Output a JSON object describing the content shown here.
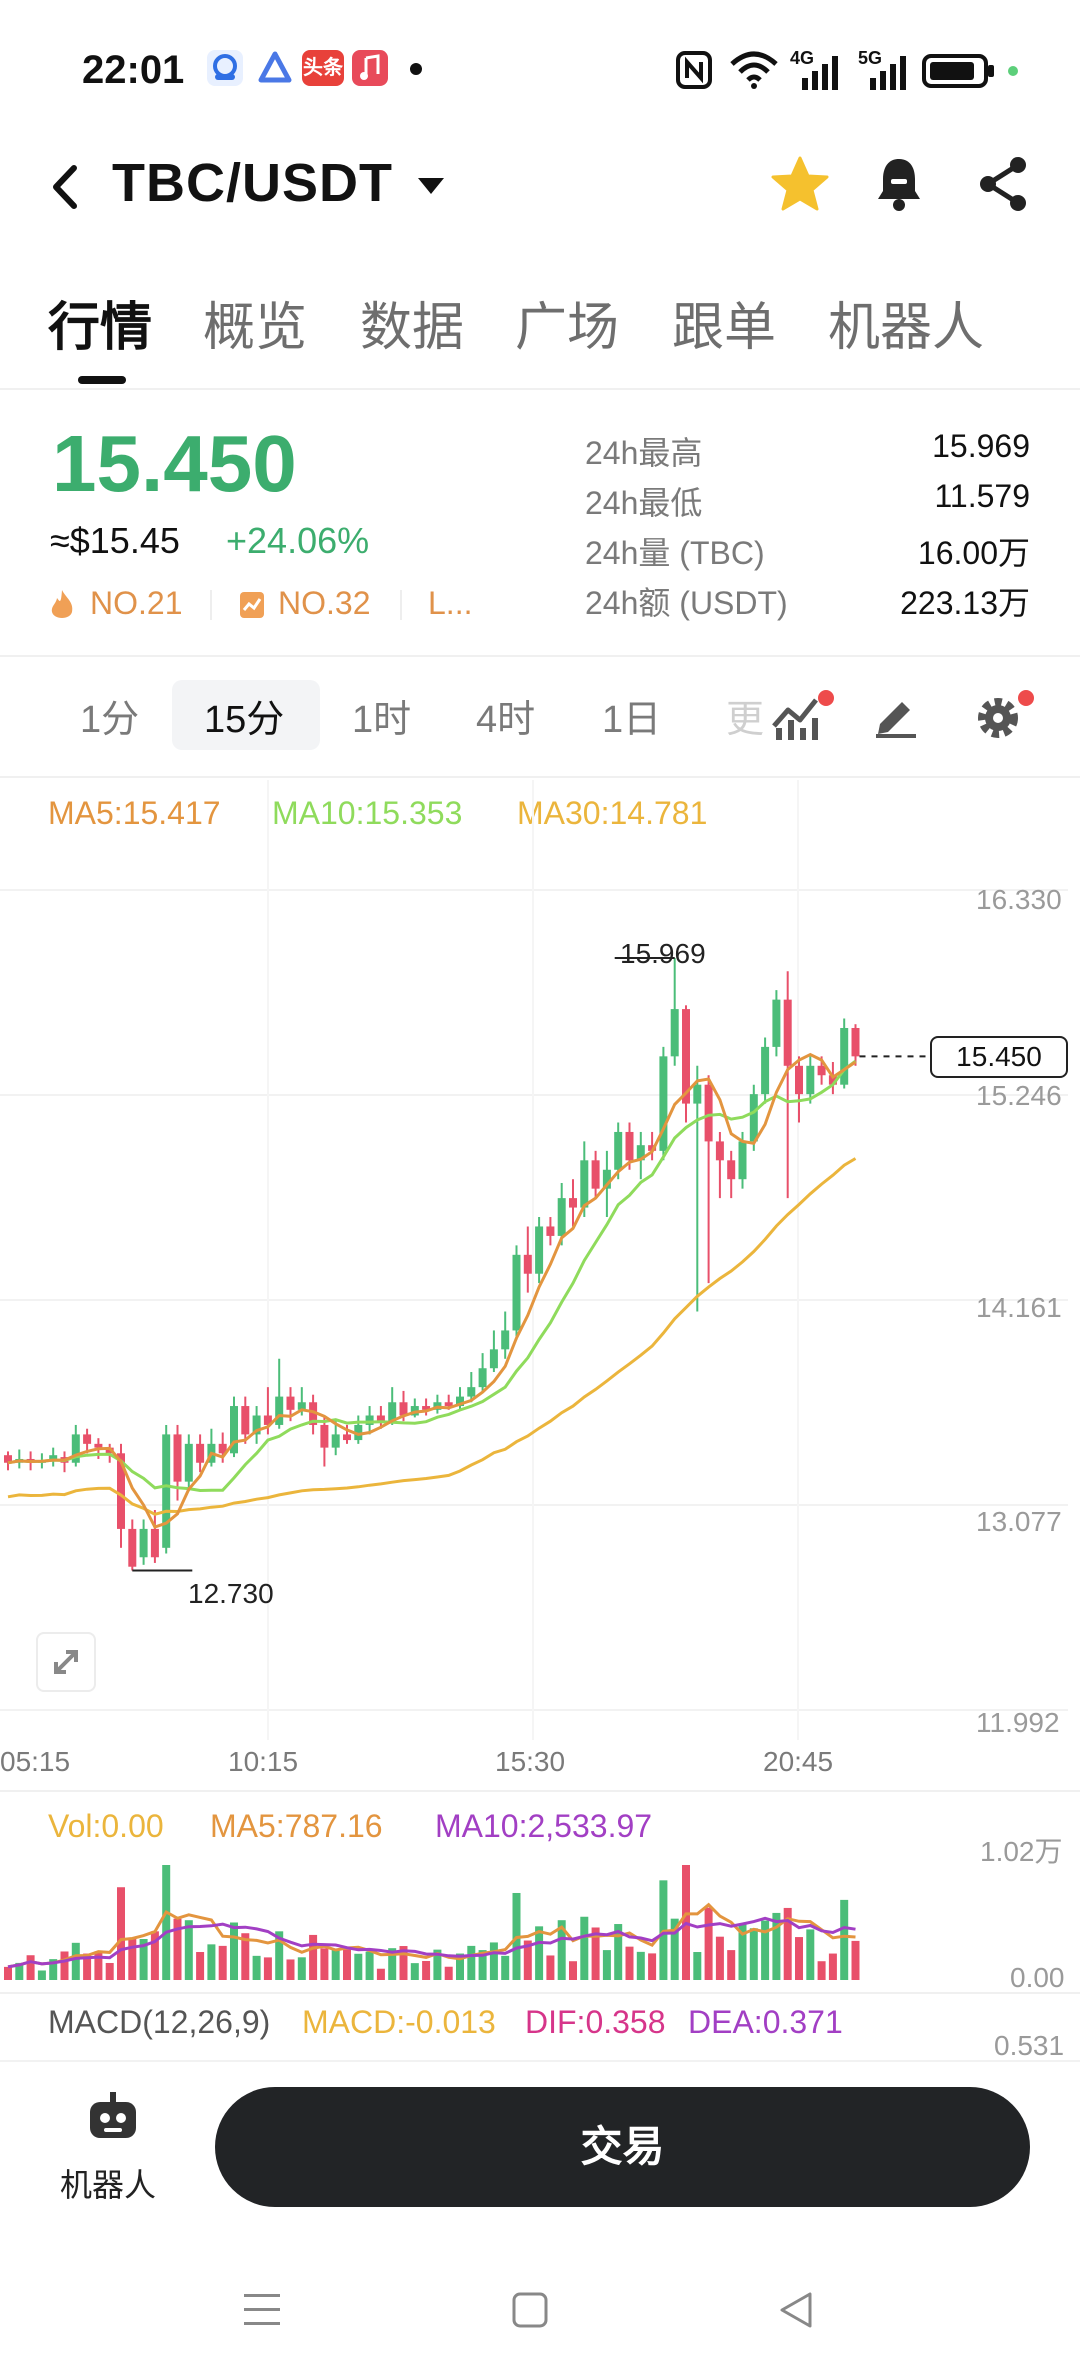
{
  "status_bar": {
    "time": "22:01",
    "app_icons": [
      "baidu-app-icon",
      "prompt-app-icon",
      "toutiao-app-icon",
      "music-app-icon"
    ],
    "toutiao_label": "头条",
    "network": [
      "4G",
      "5G"
    ]
  },
  "header": {
    "pair": "TBC/USDT"
  },
  "tabs": [
    "行情",
    "概览",
    "数据",
    "广场",
    "跟单",
    "机器人"
  ],
  "ticker": {
    "price": "15.450",
    "usd": "≈$15.45",
    "change": "+24.06%",
    "rank1": "NO.21",
    "rank2": "NO.32",
    "rank3": "L...",
    "stats": [
      {
        "label": "24h最高",
        "value": "15.969"
      },
      {
        "label": "24h最低",
        "value": "11.579"
      },
      {
        "label": "24h量 (TBC)",
        "value": "16.00万"
      },
      {
        "label": "24h额 (USDT)",
        "value": "223.13万"
      }
    ]
  },
  "timeframes": {
    "items": [
      "1分",
      "15分",
      "1时",
      "4时",
      "1日",
      "更"
    ],
    "selected": "15分"
  },
  "indicators": {
    "ma5": "MA5:15.417",
    "ma10": "MA10:15.353",
    "ma30": "MA30:14.781",
    "vol": "Vol:0.00",
    "vol_ma5": "MA5:787.16",
    "vol_ma10": "MA10:2,533.97",
    "macd_name": "MACD(12,26,9)",
    "macd": "MACD:-0.013",
    "dif": "DIF:0.358",
    "dea": "DEA:0.371"
  },
  "colors": {
    "up": "#4bbd79",
    "down": "#e8506a",
    "ma5": "#e3953f",
    "ma10": "#8fdb5c",
    "ma30": "#ebb53c",
    "vol_ma10": "#a23fc4",
    "dea": "#a23fc4"
  },
  "chart_data": {
    "type": "candlestick",
    "y_axis_labels": [
      "16.330",
      "15.246",
      "14.161",
      "13.077",
      "11.992"
    ],
    "ylim": [
      11.992,
      16.33
    ],
    "x_axis_labels": [
      "05:15",
      "10:15",
      "15:30",
      "20:45"
    ],
    "current_price_label": "15.450",
    "max_label": "15.969",
    "min_label": "12.730",
    "vol_axis_labels": [
      "1.02万",
      "0.00"
    ],
    "macd_axis_label": "0.531",
    "candles": [
      [
        13.34,
        13.3,
        13.36,
        13.26
      ],
      [
        13.3,
        13.32,
        13.37,
        13.27
      ],
      [
        13.32,
        13.3,
        13.36,
        13.26
      ],
      [
        13.3,
        13.31,
        13.35,
        13.27
      ],
      [
        13.31,
        13.34,
        13.38,
        13.28
      ],
      [
        13.33,
        13.3,
        13.36,
        13.25
      ],
      [
        13.3,
        13.45,
        13.5,
        13.28
      ],
      [
        13.45,
        13.4,
        13.48,
        13.35
      ],
      [
        13.4,
        13.38,
        13.43,
        13.32
      ],
      [
        13.38,
        13.35,
        13.4,
        13.3
      ],
      [
        13.35,
        12.95,
        13.4,
        12.85
      ],
      [
        12.95,
        12.75,
        13.0,
        12.73
      ],
      [
        12.8,
        12.95,
        13.0,
        12.76
      ],
      [
        12.95,
        12.8,
        13.05,
        12.77
      ],
      [
        12.85,
        13.45,
        13.5,
        12.82
      ],
      [
        13.45,
        13.2,
        13.5,
        13.1
      ],
      [
        13.2,
        13.4,
        13.45,
        13.15
      ],
      [
        13.4,
        13.3,
        13.45,
        13.25
      ],
      [
        13.3,
        13.4,
        13.48,
        13.28
      ],
      [
        13.4,
        13.35,
        13.46,
        13.3
      ],
      [
        13.35,
        13.6,
        13.65,
        13.33
      ],
      [
        13.6,
        13.45,
        13.65,
        13.4
      ],
      [
        13.45,
        13.55,
        13.6,
        13.4
      ],
      [
        13.55,
        13.5,
        13.7,
        13.45
      ],
      [
        13.5,
        13.65,
        13.85,
        13.48
      ],
      [
        13.65,
        13.58,
        13.7,
        13.52
      ],
      [
        13.58,
        13.62,
        13.7,
        13.55
      ],
      [
        13.62,
        13.5,
        13.66,
        13.45
      ],
      [
        13.5,
        13.38,
        13.55,
        13.28
      ],
      [
        13.38,
        13.45,
        13.52,
        13.34
      ],
      [
        13.45,
        13.42,
        13.5,
        13.4
      ],
      [
        13.42,
        13.5,
        13.55,
        13.4
      ],
      [
        13.5,
        13.55,
        13.6,
        13.45
      ],
      [
        13.55,
        13.52,
        13.6,
        13.48
      ],
      [
        13.52,
        13.62,
        13.7,
        13.5
      ],
      [
        13.62,
        13.55,
        13.68,
        13.52
      ],
      [
        13.55,
        13.6,
        13.64,
        13.54
      ],
      [
        13.6,
        13.58,
        13.64,
        13.55
      ],
      [
        13.58,
        13.62,
        13.66,
        13.56
      ],
      [
        13.62,
        13.6,
        13.66,
        13.58
      ],
      [
        13.6,
        13.65,
        13.7,
        13.58
      ],
      [
        13.65,
        13.7,
        13.78,
        13.62
      ],
      [
        13.7,
        13.8,
        13.88,
        13.68
      ],
      [
        13.8,
        13.9,
        14.0,
        13.78
      ],
      [
        13.9,
        14.0,
        14.1,
        13.85
      ],
      [
        14.0,
        14.4,
        14.45,
        13.95
      ],
      [
        14.4,
        14.3,
        14.55,
        14.2
      ],
      [
        14.3,
        14.55,
        14.6,
        14.25
      ],
      [
        14.55,
        14.5,
        14.6,
        14.45
      ],
      [
        14.5,
        14.7,
        14.78,
        14.45
      ],
      [
        14.7,
        14.65,
        14.8,
        14.55
      ],
      [
        14.65,
        14.9,
        15.0,
        14.6
      ],
      [
        14.9,
        14.75,
        14.95,
        14.7
      ],
      [
        14.75,
        14.85,
        14.95,
        14.6
      ],
      [
        14.85,
        15.05,
        15.1,
        14.8
      ],
      [
        15.05,
        14.9,
        15.1,
        14.85
      ],
      [
        14.9,
        14.98,
        15.05,
        14.8
      ],
      [
        14.98,
        14.95,
        15.05,
        14.9
      ],
      [
        14.95,
        15.45,
        15.5,
        14.9
      ],
      [
        15.45,
        15.7,
        15.97,
        15.4
      ],
      [
        15.7,
        15.2,
        15.72,
        15.1
      ],
      [
        15.2,
        15.3,
        15.4,
        14.1
      ],
      [
        15.3,
        15.0,
        15.35,
        14.25
      ],
      [
        15.0,
        14.9,
        15.05,
        14.7
      ],
      [
        14.9,
        14.8,
        14.95,
        14.7
      ],
      [
        14.8,
        15.0,
        15.05,
        14.75
      ],
      [
        15.0,
        15.25,
        15.3,
        14.95
      ],
      [
        15.25,
        15.5,
        15.55,
        15.2
      ],
      [
        15.5,
        15.75,
        15.8,
        15.45
      ],
      [
        15.75,
        15.4,
        15.9,
        14.7
      ],
      [
        15.4,
        15.25,
        15.45,
        15.1
      ],
      [
        15.25,
        15.4,
        15.45,
        15.2
      ],
      [
        15.4,
        15.35,
        15.45,
        15.3
      ],
      [
        15.35,
        15.3,
        15.42,
        15.25
      ],
      [
        15.3,
        15.6,
        15.65,
        15.28
      ],
      [
        15.6,
        15.45,
        15.62,
        15.4
      ]
    ]
  },
  "bottom": {
    "robot_label": "机器人",
    "trade_label": "交易"
  }
}
